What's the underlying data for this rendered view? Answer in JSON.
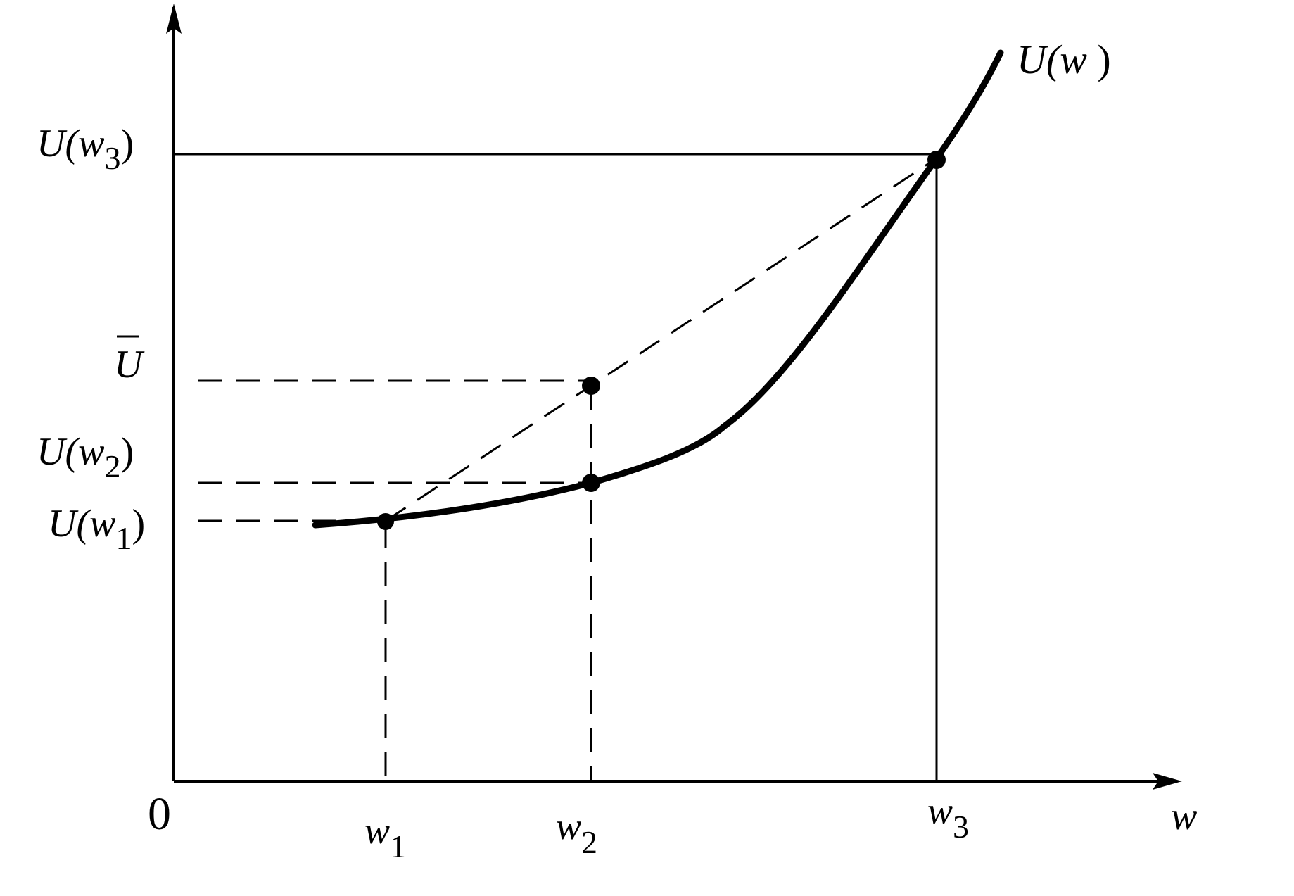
{
  "figure": {
    "origin_label": "0",
    "x_axis_label": "w",
    "curve_label": {
      "base": "U(",
      "var": "w",
      "close": " )"
    },
    "x_ticks": [
      {
        "var": "w",
        "sub": "1"
      },
      {
        "var": "w",
        "sub": "2"
      },
      {
        "var": "w",
        "sub": "3"
      }
    ],
    "y_ticks": [
      {
        "base": "U(",
        "var": "w",
        "sub": "3",
        "close": ")"
      },
      {
        "base": "U",
        "overline": true
      },
      {
        "base": "U(",
        "var": "w",
        "sub": "2",
        "close": ")"
      },
      {
        "base": "U(",
        "var": "w",
        "sub": "1",
        "close": ")"
      }
    ]
  }
}
